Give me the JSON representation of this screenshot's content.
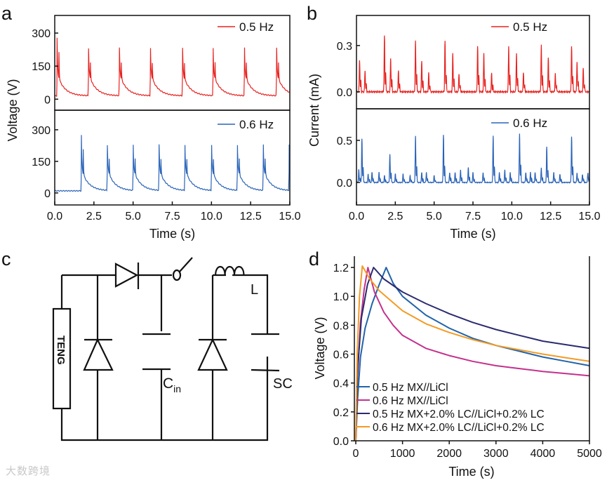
{
  "panel_labels": {
    "a": "a",
    "b": "b",
    "c": "c",
    "d": "d"
  },
  "watermark": "大数跨境",
  "chart_data": [
    {
      "id": "a",
      "type": "line",
      "xlabel": "Time (s)",
      "ylabel": "Voltage (V)",
      "xlim": [
        0,
        15
      ],
      "xticks": [
        "0.0",
        "2.5",
        "5.0",
        "7.5",
        "10.0",
        "12.5",
        "15.0"
      ],
      "xtick_values": [
        0,
        2.5,
        5,
        7.5,
        10,
        12.5,
        15
      ],
      "subplots": [
        {
          "legend": "0.5 Hz",
          "color": "#e8221f",
          "ylim": [
            -50,
            380
          ],
          "yticks": [
            0,
            150,
            300
          ],
          "baseline": 15,
          "peak": 275,
          "spike_times_s": [
            0.15,
            2.15,
            4.12,
            6.1,
            8.15,
            10.1,
            12.1,
            14.15
          ]
        },
        {
          "legend": "0.6 Hz",
          "color": "#2a63b8",
          "ylim": [
            -57,
            393
          ],
          "yticks": [
            0,
            150,
            300
          ],
          "baseline": 10,
          "peak": 275,
          "spike_times_s": [
            1.7,
            3.35,
            5.0,
            6.65,
            8.3,
            10.0,
            11.65,
            13.3,
            14.95
          ]
        }
      ]
    },
    {
      "id": "b",
      "type": "line",
      "xlabel": "Time (s)",
      "ylabel": "Current (mA)",
      "xlim": [
        0,
        15
      ],
      "xticks": [
        "0.0",
        "2.5",
        "5.0",
        "7.5",
        "10.0",
        "12.5",
        "15.0"
      ],
      "xtick_values": [
        0,
        2.5,
        5,
        7.5,
        10,
        12.5,
        15
      ],
      "subplots": [
        {
          "legend": "0.5 Hz",
          "color": "#e8221f",
          "ylim": [
            -0.11,
            0.495
          ],
          "yticks": [
            0.0,
            0.3
          ],
          "ytick_labels": [
            "0.0",
            "0.3"
          ],
          "peaks": [
            [
              0.2,
              0.21
            ],
            [
              0.55,
              0.14
            ],
            [
              1.8,
              0.36
            ],
            [
              2.2,
              0.22
            ],
            [
              2.7,
              0.14
            ],
            [
              3.8,
              0.33
            ],
            [
              4.2,
              0.2
            ],
            [
              4.65,
              0.12
            ],
            [
              5.7,
              0.33
            ],
            [
              6.2,
              0.25
            ],
            [
              6.6,
              0.12
            ],
            [
              7.8,
              0.3
            ],
            [
              8.2,
              0.25
            ],
            [
              8.7,
              0.12
            ],
            [
              9.8,
              0.3
            ],
            [
              10.3,
              0.25
            ],
            [
              10.75,
              0.13
            ],
            [
              11.9,
              0.3
            ],
            [
              12.35,
              0.22
            ],
            [
              12.8,
              0.12
            ],
            [
              13.85,
              0.3
            ],
            [
              14.2,
              0.2
            ],
            [
              14.6,
              0.15
            ]
          ]
        },
        {
          "legend": "0.6 Hz",
          "color": "#2a63b8",
          "ylim": [
            -0.267,
            0.875
          ],
          "yticks": [
            0.0,
            0.5
          ],
          "ytick_labels": [
            "0.0",
            "0.5"
          ],
          "peaks": [
            [
              0.15,
              0.15
            ],
            [
              0.35,
              0.52
            ],
            [
              0.75,
              0.1
            ],
            [
              1.0,
              0.12
            ],
            [
              1.45,
              0.12
            ],
            [
              1.8,
              0.08
            ],
            [
              2.15,
              0.33
            ],
            [
              2.5,
              0.1
            ],
            [
              3.0,
              0.1
            ],
            [
              3.45,
              0.08
            ],
            [
              3.8,
              0.55
            ],
            [
              4.2,
              0.12
            ],
            [
              4.5,
              0.12
            ],
            [
              5.0,
              0.08
            ],
            [
              5.6,
              0.56
            ],
            [
              6.0,
              0.12
            ],
            [
              6.35,
              0.12
            ],
            [
              6.7,
              0.15
            ],
            [
              7.2,
              0.18
            ],
            [
              7.5,
              0.12
            ],
            [
              8.15,
              0.12
            ],
            [
              8.8,
              0.55
            ],
            [
              9.2,
              0.12
            ],
            [
              9.55,
              0.15
            ],
            [
              9.9,
              0.12
            ],
            [
              10.5,
              0.58
            ],
            [
              10.9,
              0.12
            ],
            [
              11.2,
              0.12
            ],
            [
              11.5,
              0.12
            ],
            [
              11.9,
              0.17
            ],
            [
              12.25,
              0.42
            ],
            [
              12.7,
              0.12
            ],
            [
              13.1,
              0.1
            ],
            [
              13.85,
              0.55
            ],
            [
              14.2,
              0.12
            ],
            [
              14.55,
              0.1
            ],
            [
              14.9,
              0.12
            ]
          ]
        }
      ]
    },
    {
      "id": "d",
      "type": "line",
      "xlabel": "Time (s)",
      "ylabel": "Voltage (V)",
      "xlim": [
        0,
        5000
      ],
      "ylim": [
        0,
        1.278
      ],
      "xticks": [
        "0",
        "1000",
        "2000",
        "3000",
        "4000",
        "5000"
      ],
      "xtick_values": [
        0,
        1000,
        2000,
        3000,
        4000,
        5000
      ],
      "yticks": [
        "0.0",
        "0.2",
        "0.4",
        "0.6",
        "0.8",
        "1.0",
        "1.2"
      ],
      "ytick_values": [
        0,
        0.2,
        0.4,
        0.6,
        0.8,
        1.0,
        1.2
      ],
      "legend_position": "bottom-left",
      "series": [
        {
          "name": "0.5 Hz MX//LiCl",
          "color": "#2163aa",
          "points": [
            [
              0,
              0
            ],
            [
              40,
              0.3
            ],
            [
              100,
              0.58
            ],
            [
              200,
              0.78
            ],
            [
              350,
              0.95
            ],
            [
              500,
              1.08
            ],
            [
              650,
              1.2
            ],
            [
              800,
              1.09
            ],
            [
              1000,
              1.0
            ],
            [
              1500,
              0.87
            ],
            [
              2000,
              0.78
            ],
            [
              2500,
              0.71
            ],
            [
              3000,
              0.66
            ],
            [
              3500,
              0.62
            ],
            [
              4000,
              0.58
            ],
            [
              4500,
              0.55
            ],
            [
              5000,
              0.52
            ]
          ]
        },
        {
          "name": "0.6 Hz MX//LiCl",
          "color": "#c4318c",
          "points": [
            [
              0,
              0
            ],
            [
              30,
              0.4
            ],
            [
              100,
              0.82
            ],
            [
              180,
              1.05
            ],
            [
              260,
              1.2
            ],
            [
              400,
              1.03
            ],
            [
              600,
              0.89
            ],
            [
              800,
              0.8
            ],
            [
              1000,
              0.73
            ],
            [
              1500,
              0.64
            ],
            [
              2000,
              0.59
            ],
            [
              2500,
              0.55
            ],
            [
              3000,
              0.52
            ],
            [
              3500,
              0.5
            ],
            [
              4000,
              0.48
            ],
            [
              4500,
              0.465
            ],
            [
              5000,
              0.45
            ]
          ]
        },
        {
          "name": "0.5 Hz MX+2.0% LC//LiCl+0.2% LC",
          "color": "#2b2b70",
          "points": [
            [
              0,
              0
            ],
            [
              40,
              0.5
            ],
            [
              120,
              0.85
            ],
            [
              250,
              1.08
            ],
            [
              380,
              1.2
            ],
            [
              600,
              1.12
            ],
            [
              1000,
              1.03
            ],
            [
              1500,
              0.95
            ],
            [
              2000,
              0.88
            ],
            [
              2500,
              0.82
            ],
            [
              3000,
              0.77
            ],
            [
              3500,
              0.73
            ],
            [
              4000,
              0.69
            ],
            [
              4500,
              0.665
            ],
            [
              5000,
              0.64
            ]
          ]
        },
        {
          "name": "0.6 Hz MX+2.0% LC//LiCl+0.2% LC",
          "color": "#f39b25",
          "points": [
            [
              0,
              0
            ],
            [
              30,
              0.6
            ],
            [
              80,
              1.0
            ],
            [
              140,
              1.21
            ],
            [
              300,
              1.12
            ],
            [
              500,
              1.04
            ],
            [
              1000,
              0.9
            ],
            [
              1500,
              0.81
            ],
            [
              2000,
              0.75
            ],
            [
              2500,
              0.7
            ],
            [
              3000,
              0.66
            ],
            [
              3500,
              0.63
            ],
            [
              4000,
              0.6
            ],
            [
              4500,
              0.575
            ],
            [
              5000,
              0.55
            ]
          ]
        }
      ]
    }
  ],
  "circuit": {
    "labels": {
      "teng": "TENG",
      "cin_main": "C",
      "cin_sub": "in",
      "inductor": "L",
      "sc": "SC"
    }
  }
}
